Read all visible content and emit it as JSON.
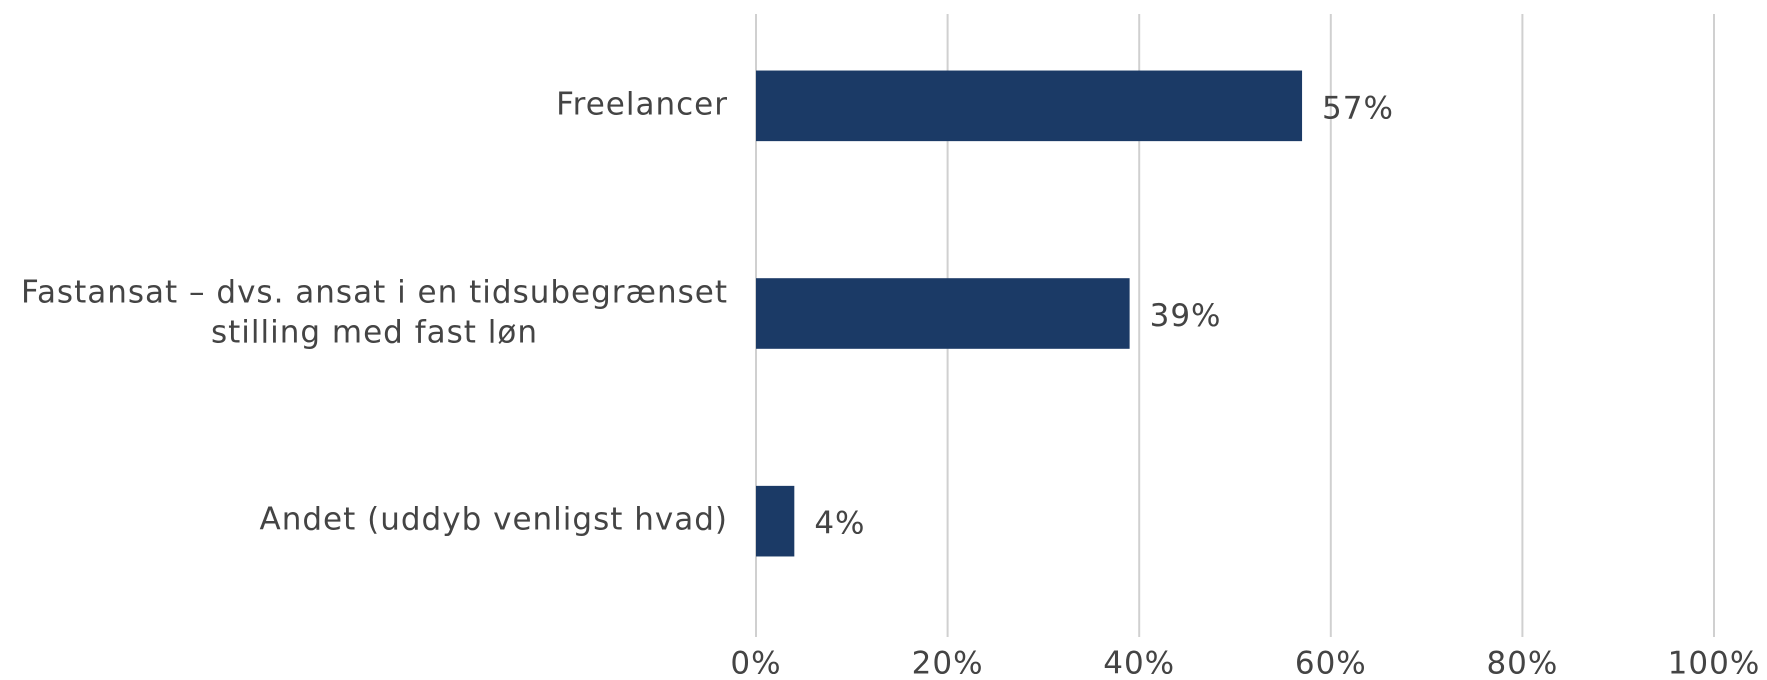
{
  "chart_data": {
    "type": "bar",
    "orientation": "horizontal",
    "categories": [
      "Freelancer",
      "Fastansat – dvs. ansat i en tidsubegrænset stilling med fast løn",
      "Andet (uddyb venligst hvad)"
    ],
    "values": [
      57,
      39,
      4
    ],
    "value_labels": [
      "57%",
      "39%",
      "4%"
    ],
    "color": "#1b3a66",
    "xlim": [
      0,
      100
    ],
    "xticks": [
      {
        "value": 0,
        "label": "0%"
      },
      {
        "value": 20,
        "label": "20%"
      },
      {
        "value": 40,
        "label": "40%"
      },
      {
        "value": 60,
        "label": "60%"
      },
      {
        "value": 80,
        "label": "80%"
      },
      {
        "value": 100,
        "label": "100%"
      }
    ],
    "grid": true
  }
}
